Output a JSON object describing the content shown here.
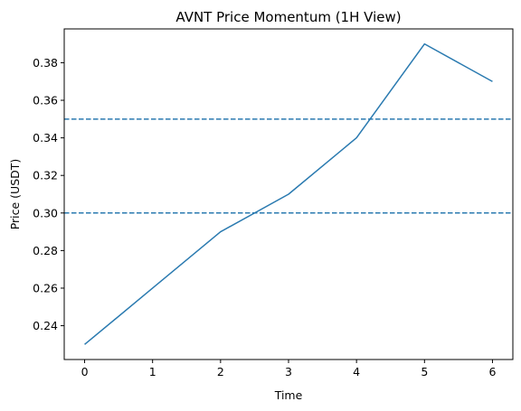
{
  "chart_data": {
    "type": "line",
    "title": "AVNT Price Momentum (1H View)",
    "xlabel": "Time",
    "ylabel": "Price (USDT)",
    "x": [
      0,
      1,
      2,
      3,
      4,
      5,
      6
    ],
    "series": [
      {
        "values": [
          0.23,
          0.26,
          0.29,
          0.31,
          0.34,
          0.39,
          0.37
        ],
        "color": "#2a7ab0"
      }
    ],
    "reference_lines": [
      {
        "y": 0.35,
        "style": "dashed",
        "color": "#2a7ab0"
      },
      {
        "y": 0.3,
        "style": "dashed",
        "color": "#2a7ab0"
      }
    ],
    "xlim": [
      -0.3,
      6.3
    ],
    "ylim": [
      0.222,
      0.398
    ],
    "xticks": [
      "0",
      "1",
      "2",
      "3",
      "4",
      "5",
      "6"
    ],
    "yticks": [
      "0.24",
      "0.26",
      "0.28",
      "0.30",
      "0.32",
      "0.34",
      "0.36",
      "0.38"
    ],
    "grid": false,
    "legend": false
  }
}
